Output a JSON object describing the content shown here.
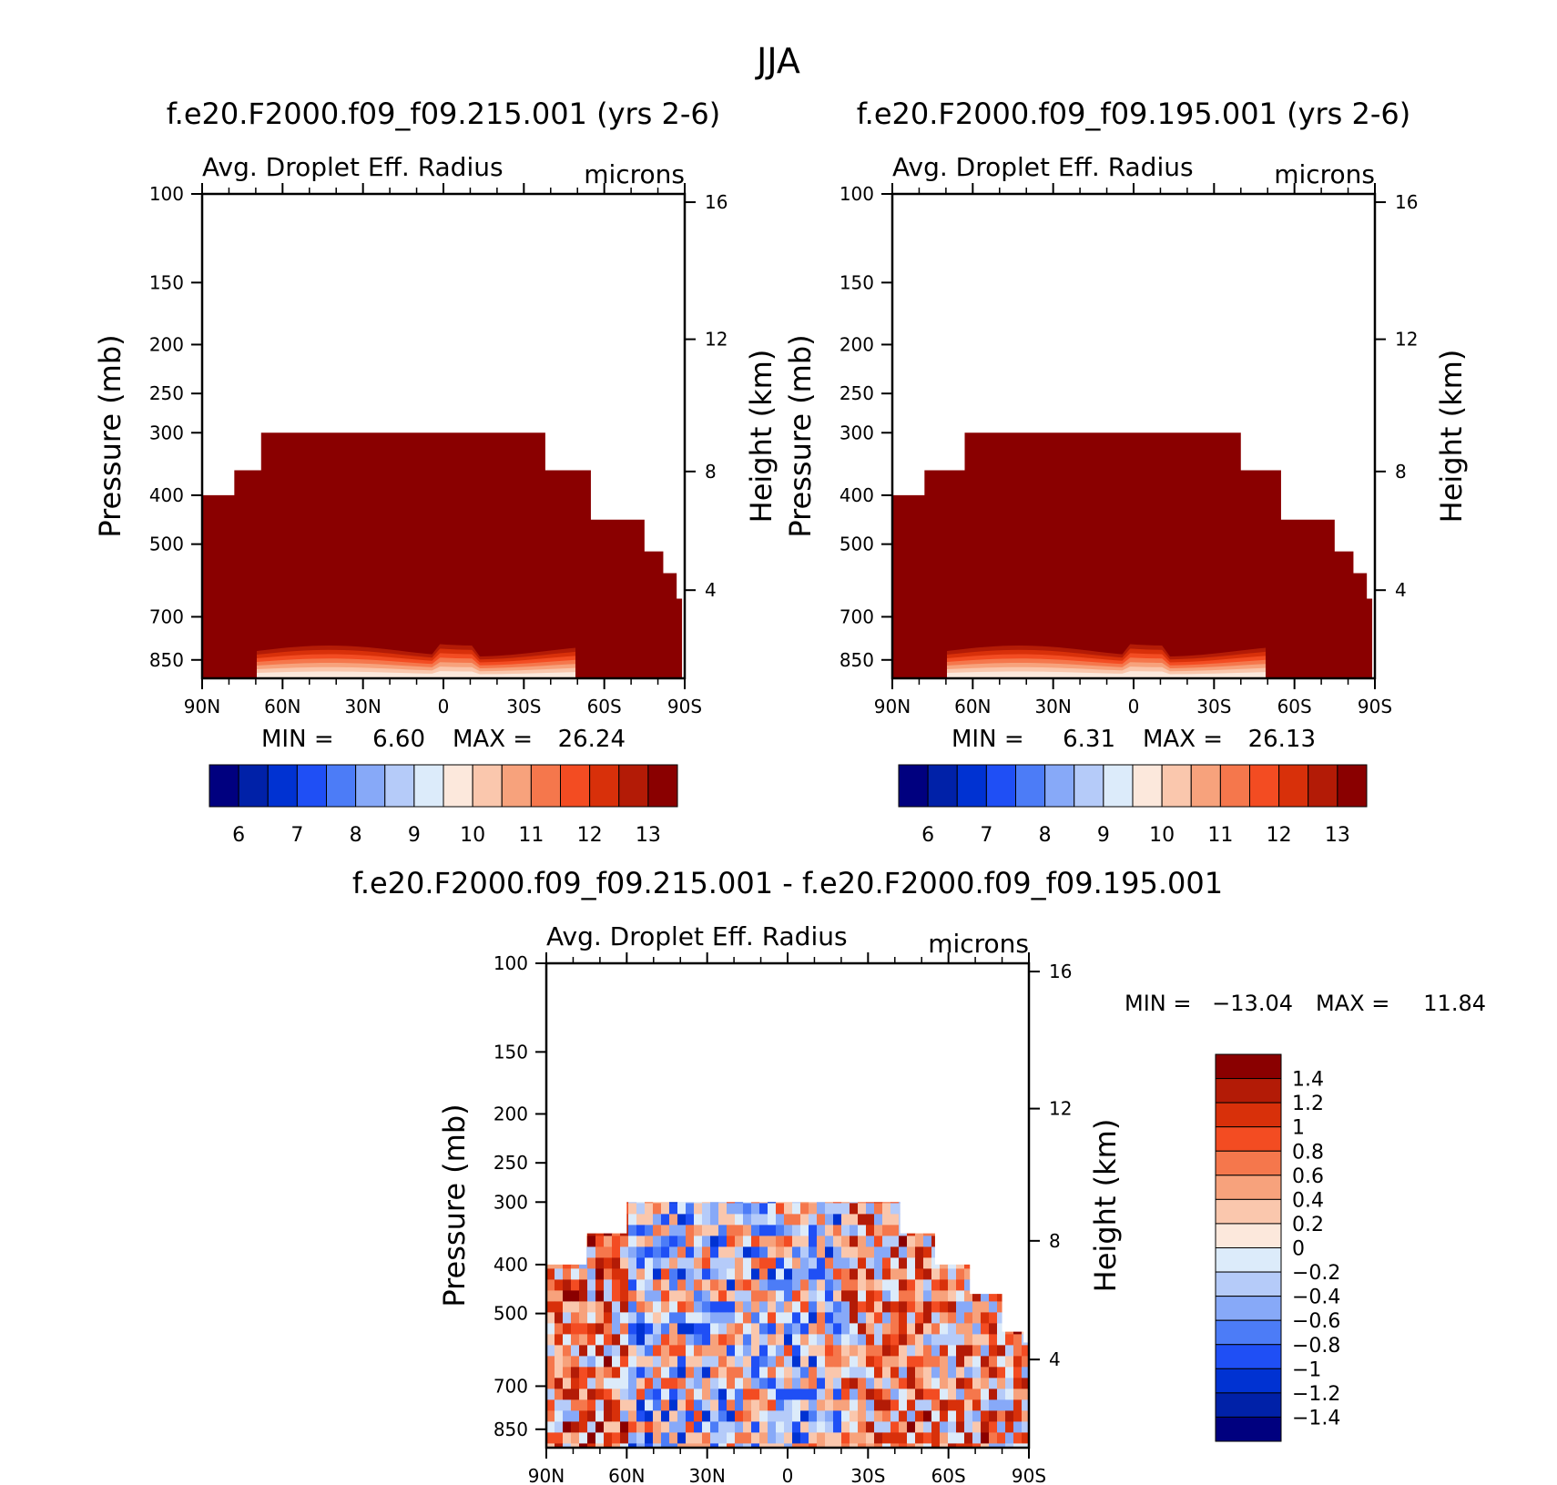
{
  "figure": {
    "title": "JJA"
  },
  "chart_data": [
    {
      "type": "heatmap",
      "title": "f.e20.F2000.f09_f09.215.001 (yrs 2-6)",
      "subtitle": "Avg. Droplet Eff. Radius",
      "units": "microns",
      "xlabel": "",
      "ylabel": "Pressure (mb)",
      "y2label": "Height (km)",
      "x_ticks": [
        "90N",
        "60N",
        "30N",
        "0",
        "30S",
        "60S",
        "90S"
      ],
      "y_ticks": [
        "100",
        "150",
        "200",
        "250",
        "300",
        "400",
        "500",
        "700",
        "850"
      ],
      "y2_ticks": [
        "16",
        "12",
        "8",
        "4"
      ],
      "xlim": [
        90,
        -90
      ],
      "ylim": [
        1000,
        100
      ],
      "min_label": "MIN =",
      "min_value": "6.60",
      "max_label": "MAX =",
      "max_value": "26.24",
      "colorbar": {
        "orientation": "horizontal",
        "levels": [
          "6",
          "7",
          "8",
          "9",
          "10",
          "11",
          "12",
          "13"
        ],
        "colors": [
          "#00007f",
          "#0021a8",
          "#0032d2",
          "#1f4ff5",
          "#4c7cf7",
          "#87a9f8",
          "#b5cbf9",
          "#dcebfa",
          "#fce8dc",
          "#fac7ad",
          "#f7a27c",
          "#f5774c",
          "#f34c22",
          "#d8300a",
          "#b31b06",
          "#8a0000"
        ]
      },
      "cloud_top_profile": [
        {
          "lat": 90,
          "p": 400
        },
        {
          "lat": 78,
          "p": 360
        },
        {
          "lat": 68,
          "p": 300
        },
        {
          "lat": 25,
          "p": 300
        },
        {
          "lat": 5,
          "p": 300
        },
        {
          "lat": -33,
          "p": 300
        },
        {
          "lat": -38,
          "p": 360
        },
        {
          "lat": -55,
          "p": 450
        },
        {
          "lat": -75,
          "p": 520
        },
        {
          "lat": -82,
          "p": 580
        },
        {
          "lat": -87,
          "p": 650
        }
      ]
    },
    {
      "type": "heatmap",
      "title": "f.e20.F2000.f09_f09.195.001 (yrs 2-6)",
      "subtitle": "Avg. Droplet Eff. Radius",
      "units": "microns",
      "xlabel": "",
      "ylabel": "Pressure (mb)",
      "y2label": "Height (km)",
      "x_ticks": [
        "90N",
        "60N",
        "30N",
        "0",
        "30S",
        "60S",
        "90S"
      ],
      "y_ticks": [
        "100",
        "150",
        "200",
        "250",
        "300",
        "400",
        "500",
        "700",
        "850"
      ],
      "y2_ticks": [
        "16",
        "12",
        "8",
        "4"
      ],
      "xlim": [
        90,
        -90
      ],
      "ylim": [
        1000,
        100
      ],
      "min_label": "MIN =",
      "min_value": "6.31",
      "max_label": "MAX =",
      "max_value": "26.13",
      "colorbar": {
        "orientation": "horizontal",
        "levels": [
          "6",
          "7",
          "8",
          "9",
          "10",
          "11",
          "12",
          "13"
        ],
        "colors": [
          "#00007f",
          "#0021a8",
          "#0032d2",
          "#1f4ff5",
          "#4c7cf7",
          "#87a9f8",
          "#b5cbf9",
          "#dcebfa",
          "#fce8dc",
          "#fac7ad",
          "#f7a27c",
          "#f5774c",
          "#f34c22",
          "#d8300a",
          "#b31b06",
          "#8a0000"
        ]
      },
      "cloud_top_profile": [
        {
          "lat": 90,
          "p": 400
        },
        {
          "lat": 78,
          "p": 360
        },
        {
          "lat": 63,
          "p": 300
        },
        {
          "lat": -4,
          "p": 300
        },
        {
          "lat": -30,
          "p": 300
        },
        {
          "lat": -40,
          "p": 360
        },
        {
          "lat": -55,
          "p": 450
        },
        {
          "lat": -75,
          "p": 520
        },
        {
          "lat": -82,
          "p": 580
        },
        {
          "lat": -87,
          "p": 650
        }
      ]
    },
    {
      "type": "heatmap",
      "title": "f.e20.F2000.f09_f09.215.001 - f.e20.F2000.f09_f09.195.001",
      "subtitle": "Avg. Droplet Eff. Radius",
      "units": "microns",
      "xlabel": "",
      "ylabel": "Pressure (mb)",
      "y2label": "Height (km)",
      "x_ticks": [
        "90N",
        "60N",
        "30N",
        "0",
        "30S",
        "60S",
        "90S"
      ],
      "y_ticks": [
        "100",
        "150",
        "200",
        "250",
        "300",
        "400",
        "500",
        "700",
        "850"
      ],
      "y2_ticks": [
        "16",
        "12",
        "8",
        "4"
      ],
      "xlim": [
        90,
        -90
      ],
      "ylim": [
        1000,
        100
      ],
      "min_label": "MIN =",
      "min_value": "−13.04",
      "max_label": "MAX =",
      "max_value": "11.84",
      "colorbar": {
        "orientation": "vertical",
        "levels": [
          "1.4",
          "1.2",
          "1",
          "0.8",
          "0.6",
          "0.4",
          "0.2",
          "0",
          "−0.2",
          "−0.4",
          "−0.6",
          "−0.8",
          "−1",
          "−1.2",
          "−1.4"
        ],
        "colors": [
          "#8a0000",
          "#b31b06",
          "#d8300a",
          "#f34c22",
          "#f5774c",
          "#f7a27c",
          "#fac7ad",
          "#fce8dc",
          "#dcebfa",
          "#b5cbf9",
          "#87a9f8",
          "#4c7cf7",
          "#1f4ff5",
          "#0032d2",
          "#0021a8",
          "#00007f"
        ]
      },
      "cloud_top_profile": [
        {
          "lat": 90,
          "p": 400
        },
        {
          "lat": 75,
          "p": 350
        },
        {
          "lat": 60,
          "p": 300
        },
        {
          "lat": -32,
          "p": 300
        },
        {
          "lat": -42,
          "p": 350
        },
        {
          "lat": -55,
          "p": 400
        },
        {
          "lat": -68,
          "p": 460
        },
        {
          "lat": -80,
          "p": 550
        },
        {
          "lat": -88,
          "p": 580
        }
      ]
    }
  ]
}
